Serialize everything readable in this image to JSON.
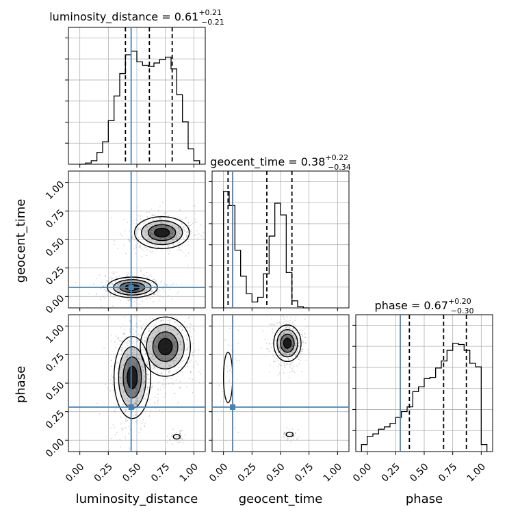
{
  "chart_data": {
    "type": "corner",
    "parameters": [
      {
        "name": "luminosity_distance",
        "median": 0.61,
        "plus": "+0.21",
        "minus": "−0.21",
        "median_label": "0.61",
        "quantiles": [
          0.4,
          0.61,
          0.81
        ],
        "truth": 0.45,
        "range": [
          -0.1,
          1.1
        ]
      },
      {
        "name": "geocent_time",
        "median": 0.38,
        "plus": "+0.22",
        "minus": "−0.34",
        "median_label": "0.38",
        "quantiles": [
          0.04,
          0.38,
          0.6
        ],
        "truth": 0.08,
        "range": [
          -0.1,
          1.1
        ]
      },
      {
        "name": "phase",
        "median": 0.67,
        "plus": "+0.20",
        "minus": "−0.30",
        "median_label": "0.67",
        "quantiles": [
          0.37,
          0.67,
          0.87
        ],
        "truth": 0.29,
        "range": [
          -0.1,
          1.1
        ]
      }
    ],
    "tick_values": [
      0,
      0.25,
      0.5,
      0.75,
      1.0
    ],
    "tick_labels": [
      "0.00",
      "0.25",
      "0.50",
      "0.75",
      "1.00"
    ],
    "grid": true,
    "truth_color": "#4682b4",
    "line_color": "#000000",
    "histograms": [
      {
        "param": "luminosity_distance",
        "bin_edges": [
          0.0,
          0.05,
          0.1,
          0.15,
          0.2,
          0.25,
          0.3,
          0.35,
          0.4,
          0.45,
          0.5,
          0.55,
          0.6,
          0.65,
          0.7,
          0.75,
          0.8,
          0.85,
          0.9,
          0.95,
          1.0,
          1.05
        ],
        "counts": [
          0.0,
          0.01,
          0.03,
          0.1,
          0.19,
          0.37,
          0.58,
          0.77,
          0.93,
          0.96,
          0.87,
          0.84,
          0.83,
          0.86,
          0.89,
          0.91,
          0.81,
          0.59,
          0.36,
          0.13,
          0.03
        ]
      },
      {
        "param": "geocent_time",
        "bin_edges": [
          0.0,
          0.05,
          0.1,
          0.15,
          0.2,
          0.25,
          0.3,
          0.35,
          0.4,
          0.45,
          0.5,
          0.55,
          0.6,
          0.65,
          0.7,
          0.75
        ],
        "counts": [
          0.99,
          0.87,
          0.49,
          0.27,
          0.12,
          0.05,
          0.09,
          0.29,
          0.61,
          0.89,
          0.79,
          0.3,
          0.06,
          0.01,
          0.0
        ]
      },
      {
        "param": "phase",
        "bin_edges": [
          -0.05,
          0.0,
          0.05,
          0.1,
          0.15,
          0.2,
          0.25,
          0.3,
          0.35,
          0.4,
          0.45,
          0.5,
          0.55,
          0.6,
          0.65,
          0.7,
          0.75,
          0.8,
          0.85,
          0.9,
          0.95,
          1.0,
          1.05
        ],
        "counts": [
          0.06,
          0.13,
          0.15,
          0.19,
          0.21,
          0.24,
          0.29,
          0.34,
          0.38,
          0.51,
          0.55,
          0.62,
          0.63,
          0.71,
          0.77,
          0.86,
          0.92,
          0.91,
          0.86,
          0.75,
          0.72,
          0.06
        ]
      }
    ],
    "clusters": [
      {
        "pair": [
          "luminosity_distance",
          "geocent_time"
        ],
        "blobs": [
          {
            "cx": 0.46,
            "cy": 0.08,
            "sx": 0.11,
            "sy": 0.045
          },
          {
            "cx": 0.72,
            "cy": 0.56,
            "sx": 0.12,
            "sy": 0.07
          }
        ]
      },
      {
        "pair": [
          "luminosity_distance",
          "phase"
        ],
        "blobs": [
          {
            "cx": 0.75,
            "cy": 0.82,
            "sx": 0.11,
            "sy": 0.13
          },
          {
            "cx": 0.46,
            "cy": 0.55,
            "sx": 0.08,
            "sy": 0.18
          },
          {
            "cx": 0.85,
            "cy": 0.03,
            "sx": 0.03,
            "sy": 0.02
          }
        ]
      },
      {
        "pair": [
          "geocent_time",
          "phase"
        ],
        "blobs": [
          {
            "cx": 0.04,
            "cy": 0.55,
            "sx": 0.04,
            "sy": 0.22
          },
          {
            "cx": 0.56,
            "cy": 0.85,
            "sx": 0.06,
            "sy": 0.08
          },
          {
            "cx": 0.58,
            "cy": 0.05,
            "sx": 0.03,
            "sy": 0.02
          }
        ]
      }
    ]
  }
}
